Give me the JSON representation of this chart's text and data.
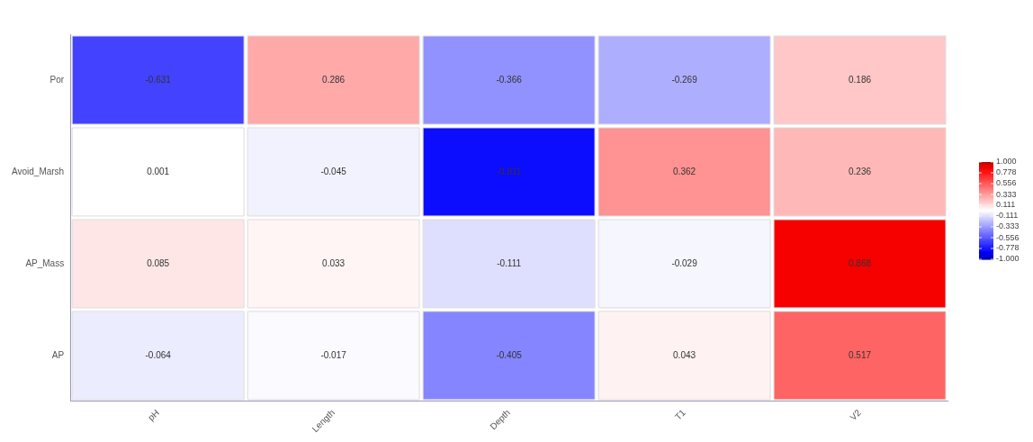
{
  "chart_data": {
    "type": "heatmap",
    "categories": [
      "pH",
      "Length",
      "Depth",
      "T1",
      "V2"
    ],
    "y_categories": [
      "Por",
      "Avoid_Marsh",
      "AP_Mass",
      "AP"
    ],
    "cells": [
      [
        -0.631,
        0.286,
        -0.366,
        -0.269,
        0.186
      ],
      [
        0.001,
        -0.045,
        -0.811,
        0.362,
        0.236
      ],
      [
        0.085,
        0.033,
        -0.111,
        -0.029,
        0.868
      ],
      [
        -0.064,
        -0.017,
        -0.405,
        0.043,
        0.517
      ]
    ],
    "data_labels": true,
    "clim": [
      -1,
      1
    ],
    "cticks": [
      {
        "value": 1,
        "label": "1.000"
      },
      {
        "value": 0.778,
        "label": "0.778"
      },
      {
        "value": 0.556,
        "label": "0.556"
      },
      {
        "value": 0.333,
        "label": "0.333"
      },
      {
        "value": 0.111,
        "label": "0.111"
      },
      {
        "value": -0.111,
        "label": "-0.111"
      },
      {
        "value": -0.333,
        "label": "-0.333"
      },
      {
        "value": -0.556,
        "label": "-0.556"
      },
      {
        "value": -0.778,
        "label": "-0.778"
      },
      {
        "value": -1,
        "label": "-1.000"
      }
    ]
  }
}
